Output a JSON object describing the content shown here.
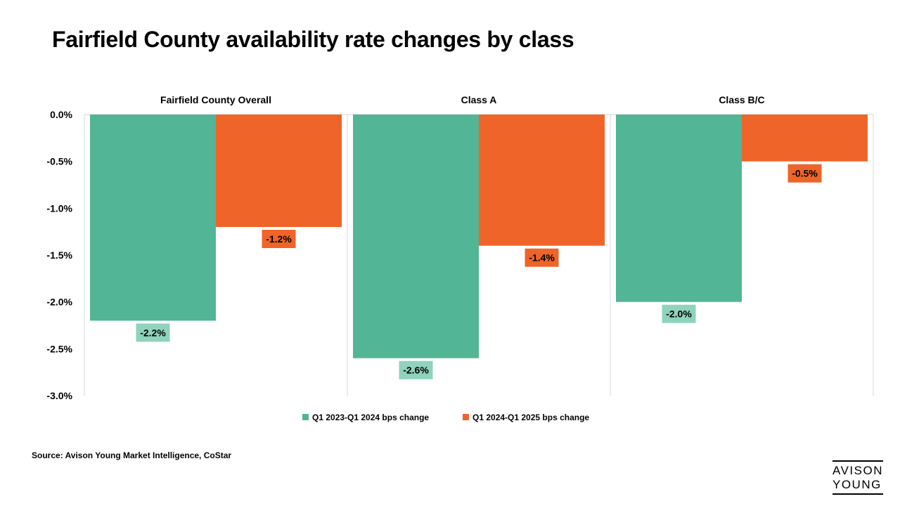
{
  "title": "Fairfield County availability rate changes by class",
  "source": "Source: Avison Young Market Intelligence, CoStar",
  "logo": {
    "line1": "AVISON",
    "line2": "YOUNG"
  },
  "colors": {
    "series1": "#52b596",
    "series2": "#ef6428",
    "label1_bg": "#8fd3bd",
    "label2_bg": "#ef6428"
  },
  "chart_data": {
    "type": "bar",
    "categories": [
      "Fairfield County Overall",
      "Class A",
      "Class B/C"
    ],
    "series": [
      {
        "name": "Q1 2023-Q1 2024 bps change",
        "values": [
          -2.2,
          -2.6,
          -2.0
        ],
        "labels": [
          "-2.2%",
          "-2.6%",
          "-2.0%"
        ]
      },
      {
        "name": "Q1 2024-Q1 2025 bps change",
        "values": [
          -1.2,
          -1.4,
          -0.5
        ],
        "labels": [
          "-1.2%",
          "-1.4%",
          "-0.5%"
        ]
      }
    ],
    "ylim": [
      -3.0,
      0.0
    ],
    "yticks": [
      0.0,
      -0.5,
      -1.0,
      -1.5,
      -2.0,
      -2.5,
      -3.0
    ],
    "ytick_labels": [
      "0.0%",
      "-0.5%",
      "-1.0%",
      "-1.5%",
      "-2.0%",
      "-2.5%",
      "-3.0%"
    ],
    "legend_position": "bottom"
  }
}
